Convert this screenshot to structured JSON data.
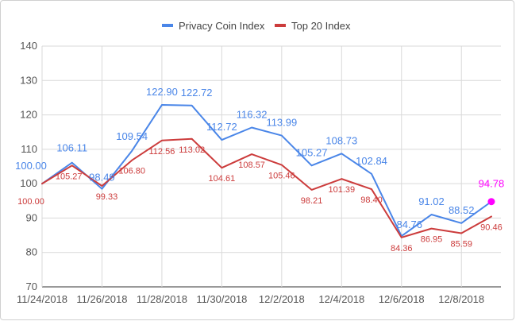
{
  "chart_data": {
    "type": "line",
    "legend_position": "top",
    "grid": true,
    "ylim": [
      70,
      140
    ],
    "y_ticks": [
      70,
      80,
      90,
      100,
      110,
      120,
      130,
      140
    ],
    "x_tick_labels": [
      "11/24/2018",
      "11/26/2018",
      "11/28/2018",
      "11/30/2018",
      "12/2/2018",
      "12/4/2018",
      "12/6/2018",
      "12/8/2018"
    ],
    "series": [
      {
        "name": "Privacy Coin Index",
        "color": "#4a86e8",
        "values": [
          100.0,
          106.11,
          98.49,
          109.54,
          122.9,
          122.72,
          112.72,
          116.32,
          113.99,
          105.27,
          108.73,
          102.84,
          84.76,
          91.02,
          88.52,
          94.78
        ],
        "labels": [
          "100.00",
          "106.11",
          "98.49",
          "109.54",
          "122.90",
          "122.72",
          "112.72",
          "116.32",
          "113.99",
          "105.27",
          "108.73",
          "102.84",
          "84.76",
          "91.02",
          "88.52",
          "94.78"
        ],
        "highlight_last_color": "#ff00ff"
      },
      {
        "name": "Top 20 Index",
        "color": "#cc3c3c",
        "values": [
          100.0,
          105.27,
          99.33,
          106.8,
          112.56,
          113.02,
          104.61,
          108.57,
          105.46,
          98.21,
          101.39,
          98.4,
          84.36,
          86.95,
          85.59,
          90.46
        ],
        "labels": [
          "100.00",
          "105.27",
          "99.33",
          "106.80",
          "112.56",
          "113.02",
          "104.61",
          "108.57",
          "105.46",
          "98.21",
          "101.39",
          "98.40",
          "84.36",
          "86.95",
          "85.59",
          "90.46"
        ]
      }
    ]
  }
}
